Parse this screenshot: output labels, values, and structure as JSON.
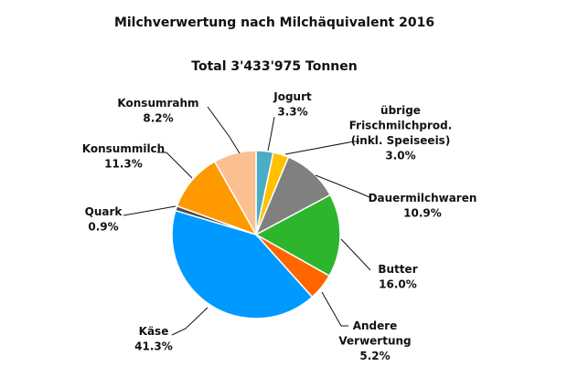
{
  "chart_data": {
    "type": "pie",
    "title": "Milchverwertung nach Milchäquivalent 2016",
    "subtitle": "Total 3'433'975 Tonnen",
    "start": "top, clockwise",
    "slices": [
      {
        "label": [
          "Jogurt"
        ],
        "value": 3.3,
        "display": "3.3%",
        "color": "#4BACC6"
      },
      {
        "label": [
          "übrige",
          "Frischmilchprod.",
          "(inkl. Speiseeis)"
        ],
        "value": 3.0,
        "display": "3.0%",
        "color": "#FFC000"
      },
      {
        "label": [
          "Dauermilchwaren"
        ],
        "value": 10.9,
        "display": "10.9%",
        "color": "#808080"
      },
      {
        "label": [
          "Butter"
        ],
        "value": 16.0,
        "display": "16.0%",
        "color": "#2DB52D"
      },
      {
        "label": [
          "Andere",
          "Verwertung"
        ],
        "value": 5.2,
        "display": "5.2%",
        "color": "#FF6600"
      },
      {
        "label": [
          "Käse"
        ],
        "value": 41.3,
        "display": "41.3%",
        "color": "#0099FF"
      },
      {
        "label": [
          "Quark"
        ],
        "value": 0.9,
        "display": "0.9%",
        "color": "#505050"
      },
      {
        "label": [
          "Konsummilch"
        ],
        "value": 11.3,
        "display": "11.3%",
        "color": "#FF9900"
      },
      {
        "label": [
          "Konsumrahm"
        ],
        "value": 8.2,
        "display": "8.2%",
        "color": "#FAC090"
      }
    ]
  }
}
